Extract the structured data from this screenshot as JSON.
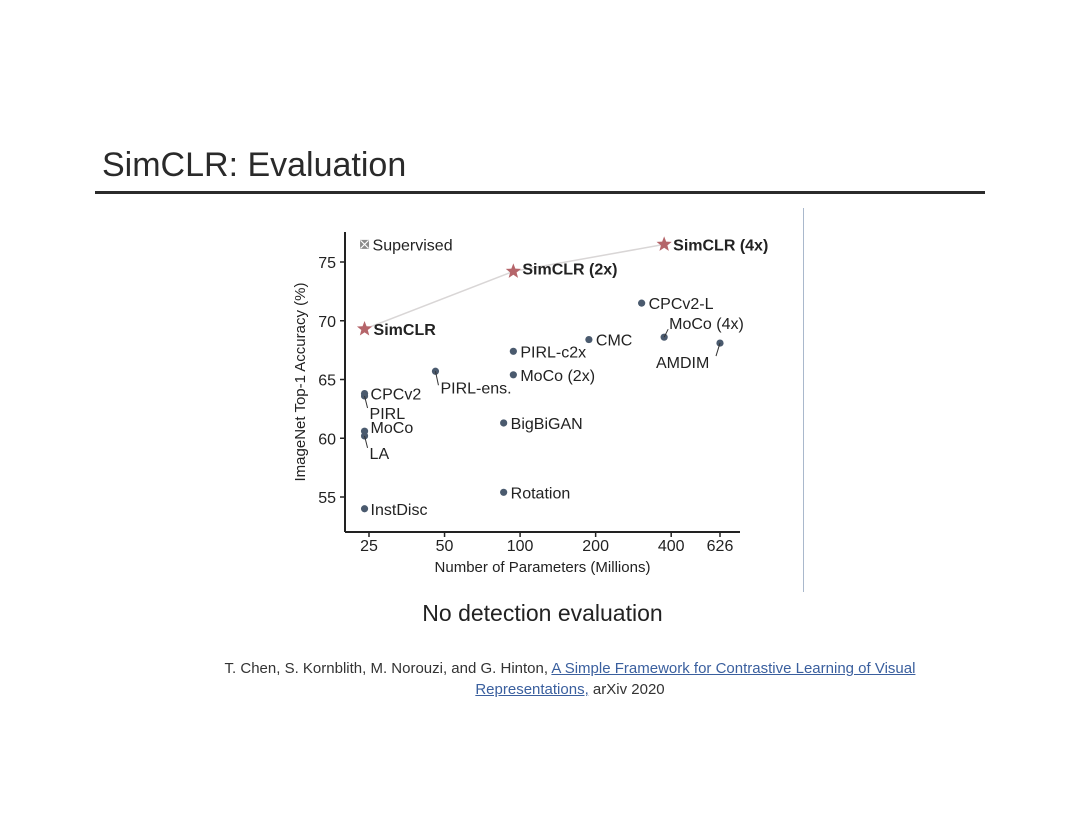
{
  "slide": {
    "title": "SimCLR: Evaluation",
    "caption": "No detection evaluation",
    "citation": {
      "authors": "T. Chen, S. Kornblith, M. Norouzi, and G. Hinton,",
      "link_text_1": "A Simple Framework for Contrastive Learning of Visual",
      "link_text_2": "Representations,",
      "venue": "arXiv 2020"
    }
  },
  "colors": {
    "point": "#4a5a6e",
    "star": "#b5656a",
    "supervised": "#8a8a8a",
    "simclr_line": "#d9d6d6",
    "axis": "#222222",
    "link": "#3a5f9e"
  },
  "chart_data": {
    "type": "scatter",
    "title": "",
    "xlabel": "Number of Parameters (Millions)",
    "ylabel": "ImageNet Top-1 Accuracy (%)",
    "x_scale": "log",
    "x_ticks": [
      25,
      50,
      100,
      200,
      400,
      626
    ],
    "x_tick_labels": [
      "25",
      "50",
      "100",
      "200",
      "400",
      "626"
    ],
    "y_ticks": [
      55,
      60,
      65,
      70,
      75
    ],
    "y_tick_labels": [
      "55",
      "60",
      "65",
      "70",
      "75"
    ],
    "xlim": [
      20,
      780
    ],
    "ylim": [
      53,
      77.5
    ],
    "grid": false,
    "simclr_line": [
      [
        24,
        69.3
      ],
      [
        94,
        74.2
      ],
      [
        375,
        76.5
      ]
    ],
    "points": [
      {
        "label": "Supervised",
        "x": 24,
        "y": 76.5,
        "marker": "x",
        "bold": false
      },
      {
        "label": "SimCLR",
        "x": 24,
        "y": 69.3,
        "marker": "star",
        "bold": true
      },
      {
        "label": "SimCLR (2x)",
        "x": 94,
        "y": 74.2,
        "marker": "star",
        "bold": true
      },
      {
        "label": "SimCLR (4x)",
        "x": 375,
        "y": 76.5,
        "marker": "star",
        "bold": true
      },
      {
        "label": "CPCv2-L",
        "x": 305,
        "y": 71.5,
        "marker": "dot",
        "bold": false
      },
      {
        "label": "MoCo (4x)",
        "x": 375,
        "y": 68.6,
        "marker": "dot",
        "bold": false
      },
      {
        "label": "AMDIM",
        "x": 626,
        "y": 68.1,
        "marker": "dot",
        "bold": false
      },
      {
        "label": "CMC",
        "x": 188,
        "y": 68.4,
        "marker": "dot",
        "bold": false
      },
      {
        "label": "PIRL-c2x",
        "x": 94,
        "y": 67.4,
        "marker": "dot",
        "bold": false
      },
      {
        "label": "MoCo (2x)",
        "x": 94,
        "y": 65.4,
        "marker": "dot",
        "bold": false
      },
      {
        "label": "PIRL-ens.",
        "x": 46,
        "y": 65.7,
        "marker": "dot",
        "bold": false
      },
      {
        "label": "CPCv2",
        "x": 24,
        "y": 63.8,
        "marker": "dot",
        "bold": false
      },
      {
        "label": "PIRL",
        "x": 24,
        "y": 63.6,
        "marker": "dot",
        "bold": false
      },
      {
        "label": "MoCo",
        "x": 24,
        "y": 60.6,
        "marker": "dot",
        "bold": false
      },
      {
        "label": "LA",
        "x": 24,
        "y": 60.2,
        "marker": "dot",
        "bold": false
      },
      {
        "label": "BigBiGAN",
        "x": 86,
        "y": 61.3,
        "marker": "dot",
        "bold": false
      },
      {
        "label": "Rotation",
        "x": 86,
        "y": 55.4,
        "marker": "dot",
        "bold": false
      },
      {
        "label": "InstDisc",
        "x": 24,
        "y": 54.0,
        "marker": "dot",
        "bold": false
      }
    ]
  }
}
